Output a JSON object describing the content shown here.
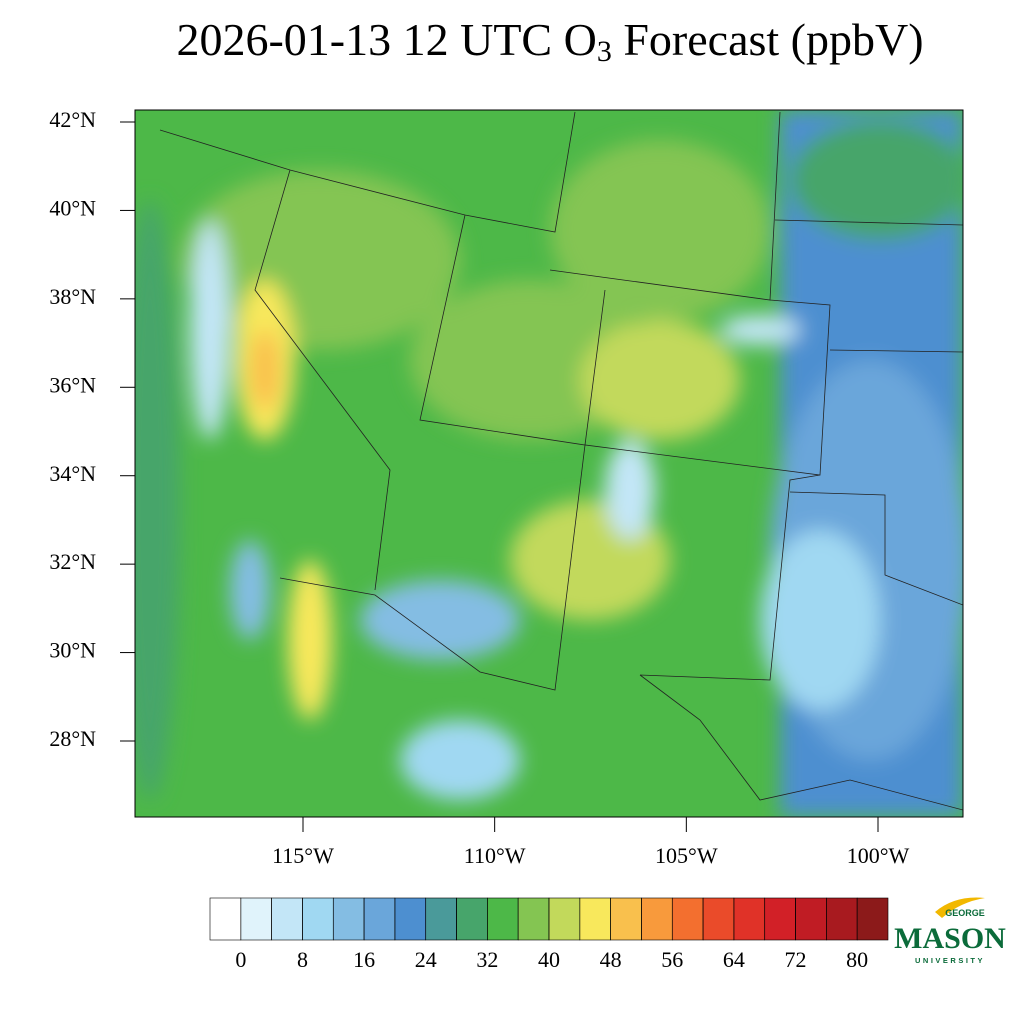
{
  "title": {
    "prefix": "2026-01-13 12 UTC O",
    "subscript": "3",
    "suffix": " Forecast (ppbV)"
  },
  "map": {
    "lat_ticks": [
      {
        "value": 42,
        "label": "42°N"
      },
      {
        "value": 40,
        "label": "40°N"
      },
      {
        "value": 38,
        "label": "38°N"
      },
      {
        "value": 36,
        "label": "36°N"
      },
      {
        "value": 34,
        "label": "34°N"
      },
      {
        "value": 32,
        "label": "32°N"
      },
      {
        "value": 30,
        "label": "30°N"
      },
      {
        "value": 28,
        "label": "28°N"
      }
    ],
    "lon_ticks": [
      {
        "value": -115,
        "label": "115°W"
      },
      {
        "value": -110,
        "label": "110°W"
      },
      {
        "value": -105,
        "label": "105°W"
      },
      {
        "value": -100,
        "label": "100°W"
      }
    ]
  },
  "colorbar": {
    "levels": [
      0,
      4,
      8,
      12,
      16,
      20,
      24,
      28,
      32,
      36,
      40,
      44,
      48,
      52,
      56,
      60,
      64,
      68,
      72,
      76,
      80
    ],
    "colors": [
      "#ffffff",
      "#e0f3fb",
      "#c3e6f7",
      "#a0d8f2",
      "#84bde3",
      "#6aa6da",
      "#4d8fd0",
      "#4a9a9a",
      "#47a56b",
      "#4db848",
      "#84c552",
      "#c2d95b",
      "#f8e85c",
      "#f9c04d",
      "#f89a3c",
      "#f36f2f",
      "#ea4b2a",
      "#e03228",
      "#d22027",
      "#c01c24",
      "#a81a1f",
      "#8c1a1a"
    ],
    "ticks": [
      0,
      8,
      16,
      24,
      32,
      40,
      48,
      56,
      64,
      72,
      80
    ]
  },
  "logo": {
    "top": "GEORGE",
    "main": "MASON",
    "bottom": "UNIVERSITY"
  }
}
